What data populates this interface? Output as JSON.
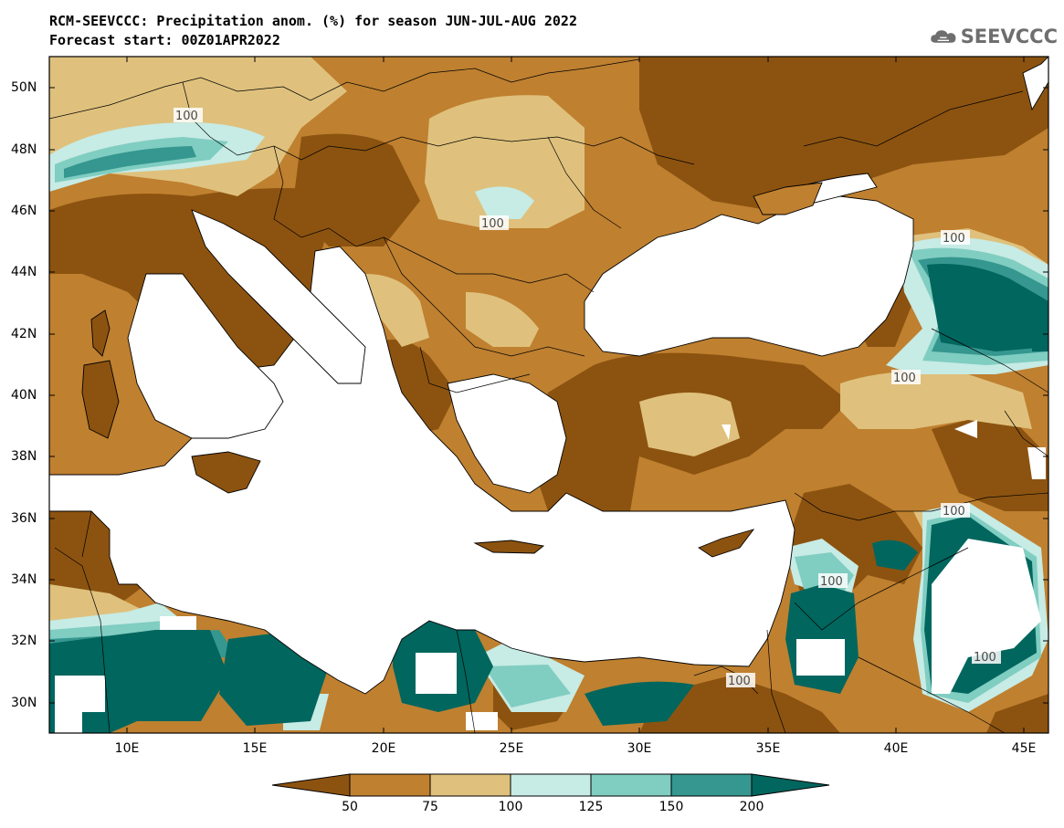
{
  "title_line1": "RCM-SEEVCCC: Precipitation anom. (%) for season JUN-JUL-AUG 2022",
  "title_line2": "Forecast start: 00Z01APR2022",
  "logo": {
    "text": "SEEVCCC",
    "icon": "cloud-icon"
  },
  "map": {
    "lat_ticks": [
      "50N",
      "48N",
      "46N",
      "44N",
      "42N",
      "40N",
      "38N",
      "36N",
      "34N",
      "32N",
      "30N"
    ],
    "lon_ticks": [
      "10E",
      "15E",
      "20E",
      "25E",
      "30E",
      "35E",
      "40E",
      "45E"
    ],
    "contour_label": "100"
  },
  "colorbar": {
    "tick_labels": [
      "50",
      "75",
      "100",
      "125",
      "150",
      "200"
    ],
    "colors": {
      "below_50": "#8c5310",
      "50_75": "#bf8030",
      "75_100": "#dfc17d",
      "100_125": "#c7ebe5",
      "125_150": "#80cdc1",
      "150_200": "#35978f",
      "above_200": "#01665e"
    }
  }
}
